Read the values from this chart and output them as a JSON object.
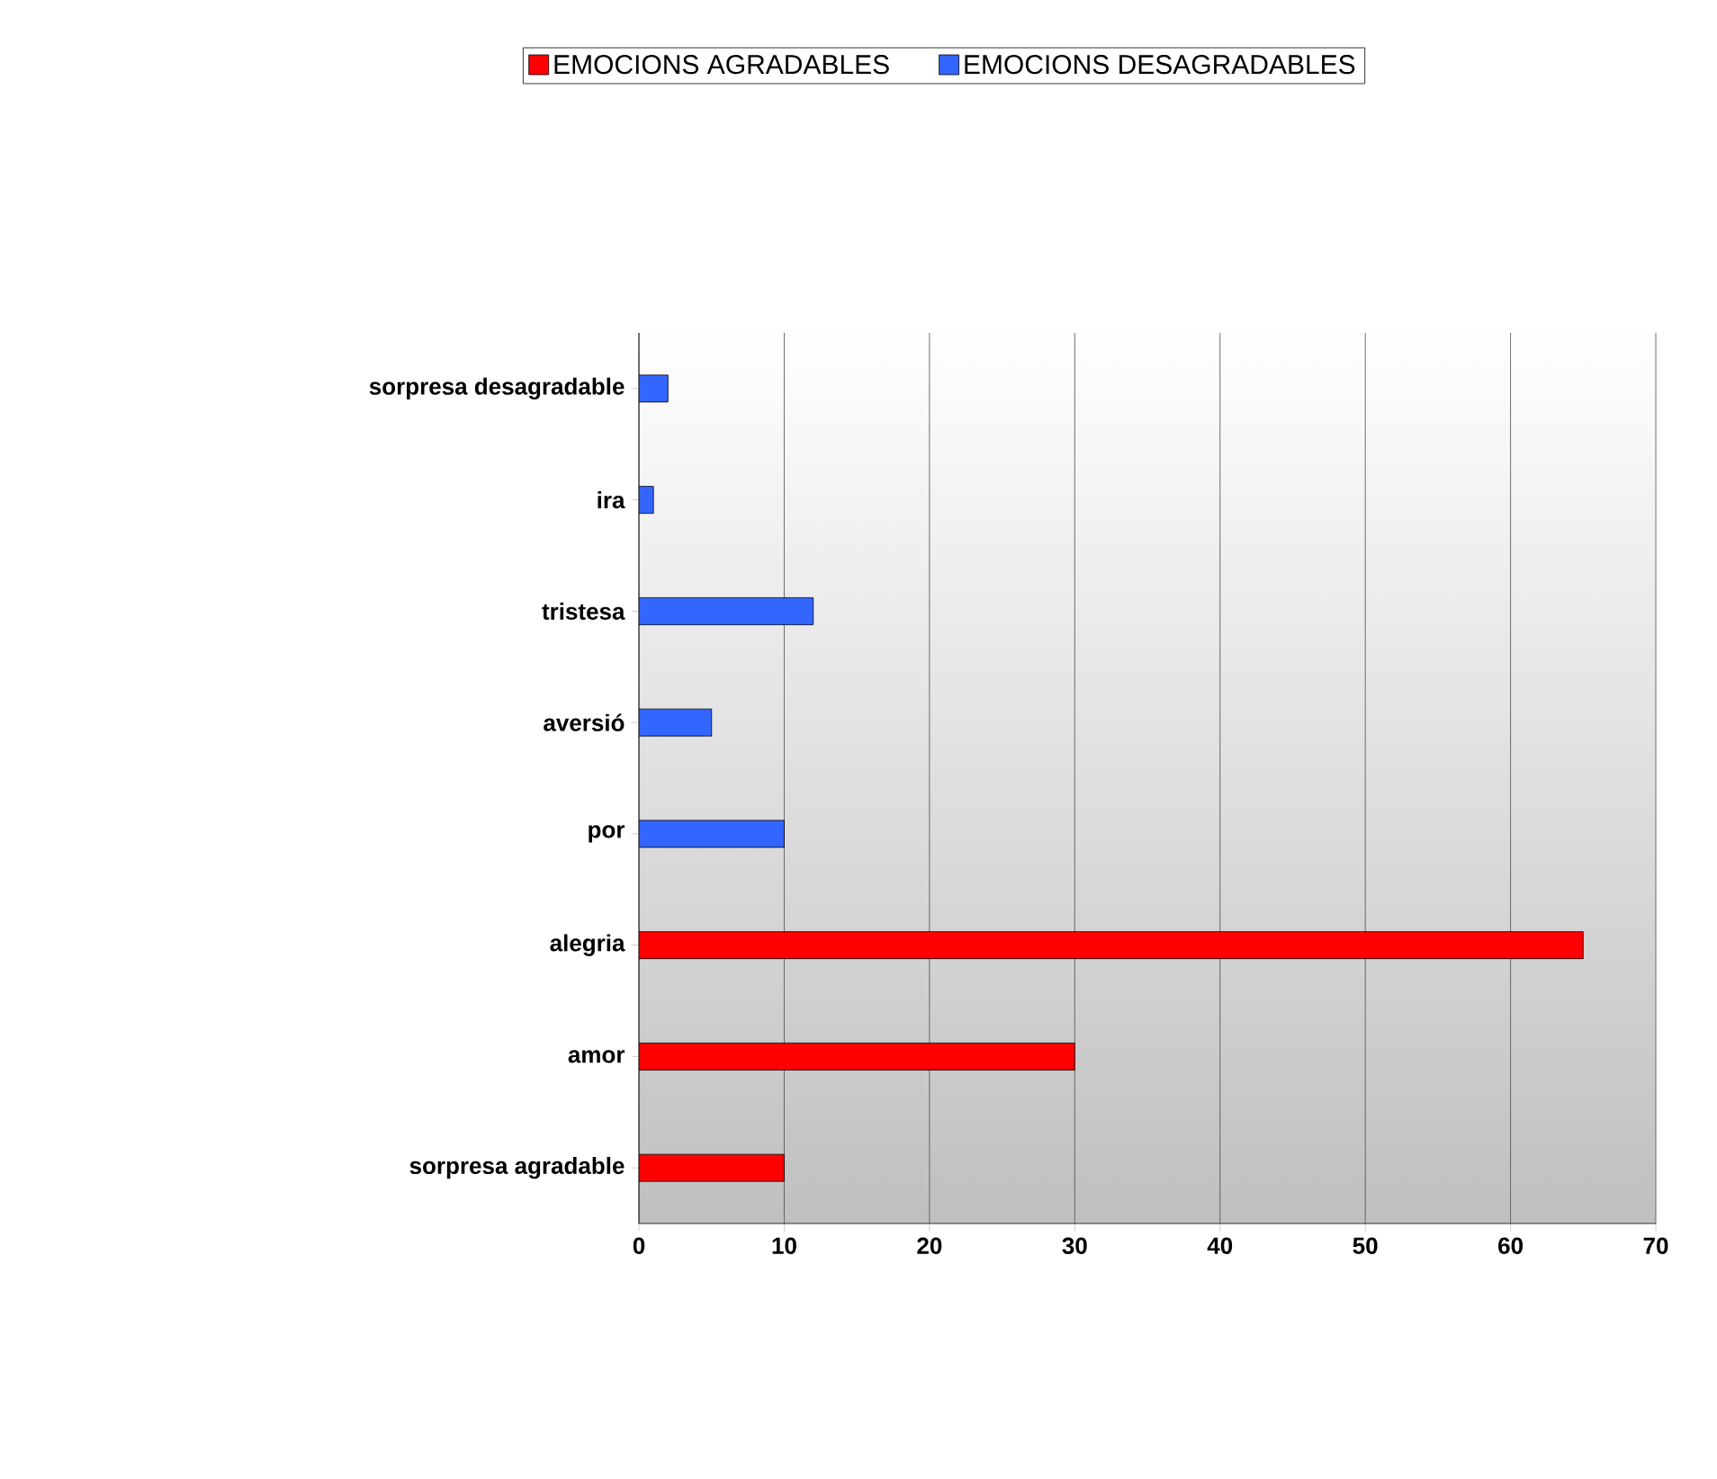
{
  "chart_data": {
    "type": "bar",
    "orientation": "horizontal",
    "categories": [
      "sorpresa desagradable",
      "ira",
      "tristesa",
      "aversió",
      "por",
      "alegria",
      "amor",
      "sorpresa agradable"
    ],
    "series": [
      {
        "name": "EMOCIONS AGRADABLES",
        "color": "#ff0000",
        "values": [
          null,
          null,
          null,
          null,
          null,
          65,
          30,
          10
        ]
      },
      {
        "name": "EMOCIONS DESAGRADABLES",
        "color": "#3366ff",
        "values": [
          2,
          1,
          12,
          5,
          10,
          null,
          null,
          null
        ]
      }
    ],
    "xlim": [
      0,
      70
    ],
    "xticks": [
      0,
      10,
      20,
      30,
      40,
      50,
      60,
      70
    ],
    "grid": "x",
    "legend": "top"
  }
}
